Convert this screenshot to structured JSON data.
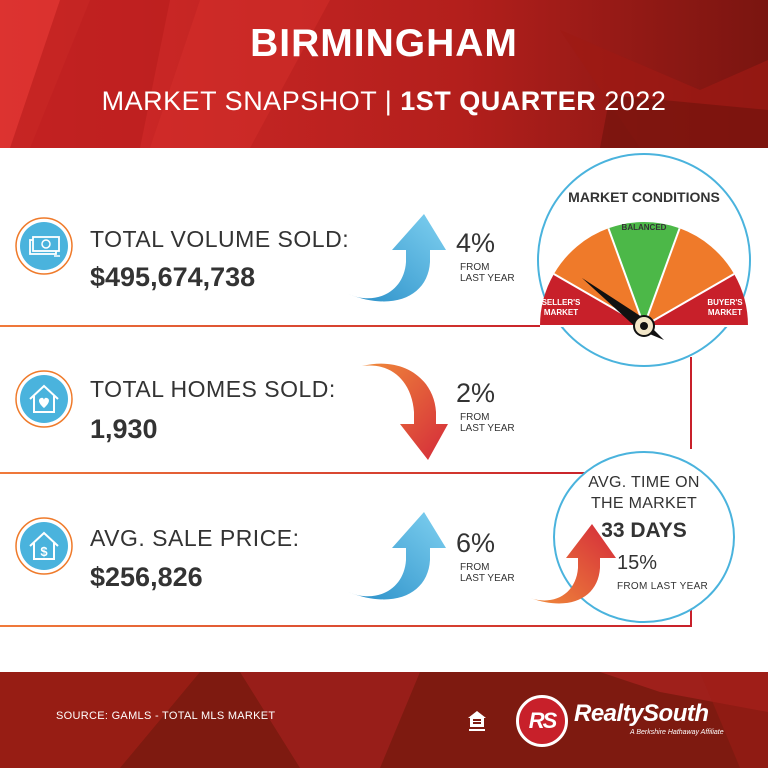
{
  "header": {
    "city": "BIRMINGHAM",
    "subtitle_left": "MARKET SNAPSHOT | ",
    "subtitle_bold": "1ST QUARTER",
    "subtitle_right": " 2022"
  },
  "stats": [
    {
      "label": "TOTAL VOLUME SOLD:",
      "value": "$495,674,738",
      "change": "4%",
      "change_sub_1": "FROM",
      "change_sub_2": "LAST YEAR",
      "direction": "up",
      "icon": "money-stack-icon"
    },
    {
      "label": "TOTAL HOMES SOLD:",
      "value": "1,930",
      "change": "2%",
      "change_sub_1": "FROM",
      "change_sub_2": "LAST YEAR",
      "direction": "down",
      "icon": "house-heart-icon"
    },
    {
      "label": "AVG. SALE PRICE:",
      "value": "$256,826",
      "change": "6%",
      "change_sub_1": "FROM",
      "change_sub_2": "LAST YEAR",
      "direction": "up",
      "icon": "house-dollar-icon"
    }
  ],
  "market_conditions": {
    "title": "MARKET CONDITIONS",
    "sellers_1": "SELLER'S",
    "sellers_2": "MARKET",
    "balanced": "BALANCED",
    "buyers_1": "BUYER'S",
    "buyers_2": "MARKET",
    "indicator": "seller's market"
  },
  "time_on_market": {
    "title_1": "AVG. TIME ON",
    "title_2": "THE MARKET",
    "days": "33 DAYS",
    "change": "15%",
    "change_sub": "FROM LAST YEAR",
    "direction": "up"
  },
  "footer": {
    "source": "SOURCE: GAMLS - TOTAL MLS MARKET",
    "logo_mark": "RS",
    "brand_1": "Realty",
    "brand_2": "South",
    "tagline": "A Berkshire Hathaway Affiliate",
    "eho_icon": "equal-housing-icon"
  },
  "colors": {
    "red_dark": "#8c1a10",
    "red": "#c8202a",
    "orange": "#ef7a2a",
    "green": "#4cb848",
    "blue": "#4ab3dd",
    "text": "#333333"
  }
}
